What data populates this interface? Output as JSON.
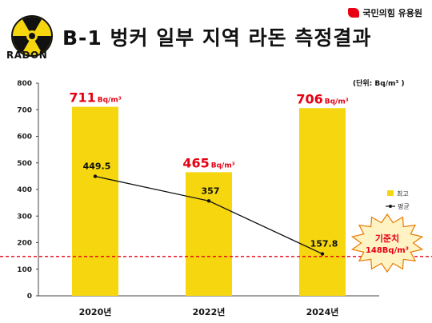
{
  "header": {
    "logo_text": "RADON",
    "title": "B-1 벙커 일부 지역 라돈 측정결과",
    "party": "국민의힘 유용원"
  },
  "chart_data": {
    "type": "bar",
    "unit_label": "(단위: Bq/m³ )",
    "categories": [
      "2020년",
      "2022년",
      "2024년"
    ],
    "series": [
      {
        "name": "최고",
        "type": "bar",
        "values": [
          711,
          465,
          706
        ],
        "color": "#f5d60f"
      },
      {
        "name": "평균",
        "type": "line",
        "values": [
          449.5,
          357,
          157.8
        ],
        "color": "#111111"
      }
    ],
    "bar_labels": [
      {
        "value": "711",
        "unit": "Bq/m³"
      },
      {
        "value": "465",
        "unit": "Bq/m³"
      },
      {
        "value": "706",
        "unit": "Bq/m³"
      }
    ],
    "line_labels": [
      "449.5",
      "357",
      "157.8"
    ],
    "ylim": [
      0,
      800
    ],
    "yticks": [
      0,
      100,
      200,
      300,
      400,
      500,
      600,
      700,
      800
    ],
    "reference": {
      "value": 148,
      "label_line1": "기준치",
      "label_line2": "148Bq/m³",
      "color": "#e60012"
    },
    "legend_position": "right"
  }
}
